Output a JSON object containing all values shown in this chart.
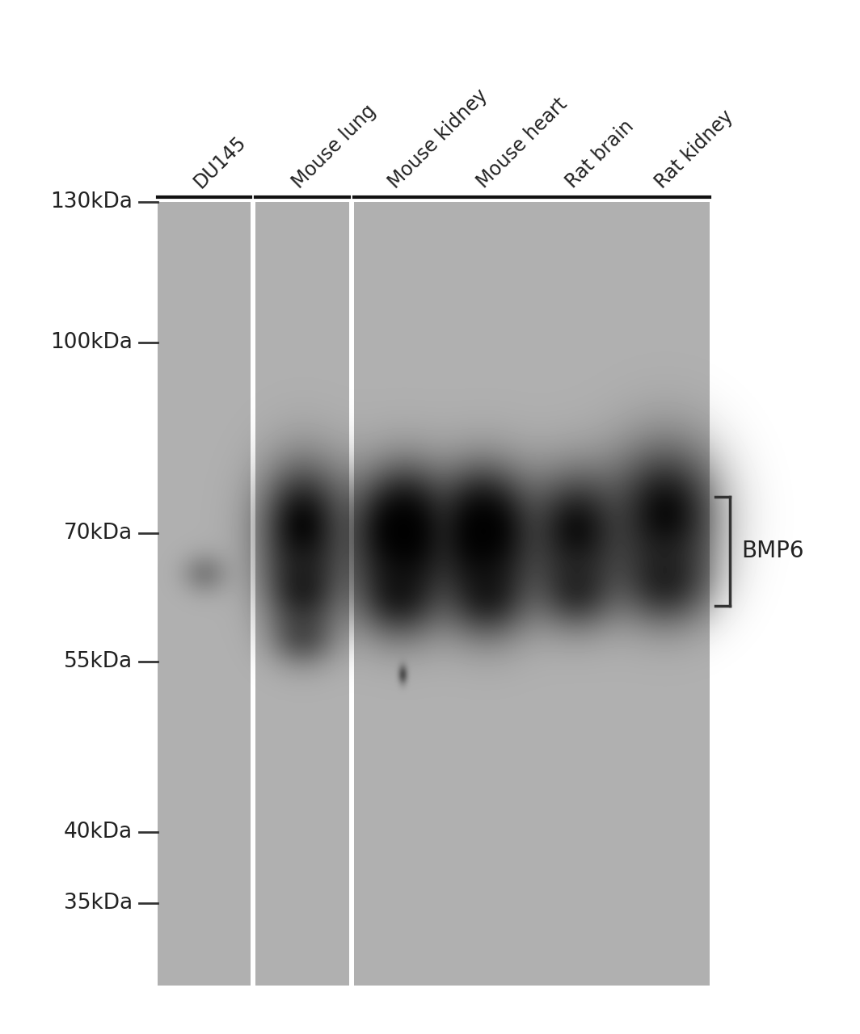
{
  "white_bg": "#ffffff",
  "gel_color": "#b0b0b0",
  "separator_color": "#cccccc",
  "lane_labels": [
    "DU145",
    "Mouse lung",
    "Mouse kidney",
    "Mouse heart",
    "Rat brain",
    "Rat kidney"
  ],
  "mw_markers": [
    "130kDa",
    "100kDa",
    "70kDa",
    "55kDa",
    "40kDa",
    "35kDa"
  ],
  "annotation_label": "BMP6",
  "tick_color": "#333333",
  "label_color": "#222222"
}
